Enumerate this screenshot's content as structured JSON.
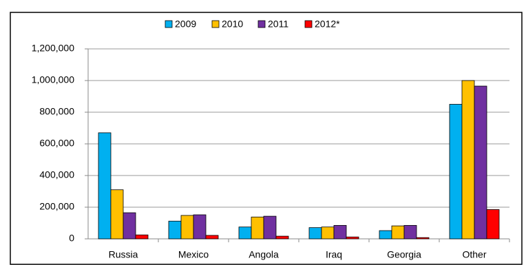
{
  "chart_data": {
    "type": "bar",
    "categories": [
      "Russia",
      "Mexico",
      "Angola",
      "Iraq",
      "Georgia",
      "Other"
    ],
    "series": [
      {
        "name": "2009",
        "color": "#00b0f0",
        "values": [
          670000,
          112000,
          75000,
          71000,
          52000,
          850000
        ]
      },
      {
        "name": "2010",
        "color": "#ffc000",
        "values": [
          310000,
          148000,
          138000,
          75000,
          82000,
          1000000
        ]
      },
      {
        "name": "2011",
        "color": "#7030a0",
        "values": [
          165000,
          152000,
          143000,
          85000,
          85000,
          965000
        ]
      },
      {
        "name": "2012*",
        "color": "#ff0000",
        "values": [
          25000,
          22000,
          17000,
          12000,
          8000,
          185000
        ]
      }
    ],
    "ylim": [
      0,
      1200000
    ],
    "yticks": [
      0,
      {
        "value": 200000,
        "label": "200,000"
      },
      {
        "value": 400000,
        "label": "400,000"
      },
      {
        "value": 600000,
        "label": "600,000"
      },
      {
        "value": 800000,
        "label": "800,000"
      },
      {
        "value": 1000000,
        "label": "1,000,000"
      },
      {
        "value": 1200000,
        "label": "1,200,000"
      }
    ],
    "grid": true,
    "legend": "top"
  }
}
